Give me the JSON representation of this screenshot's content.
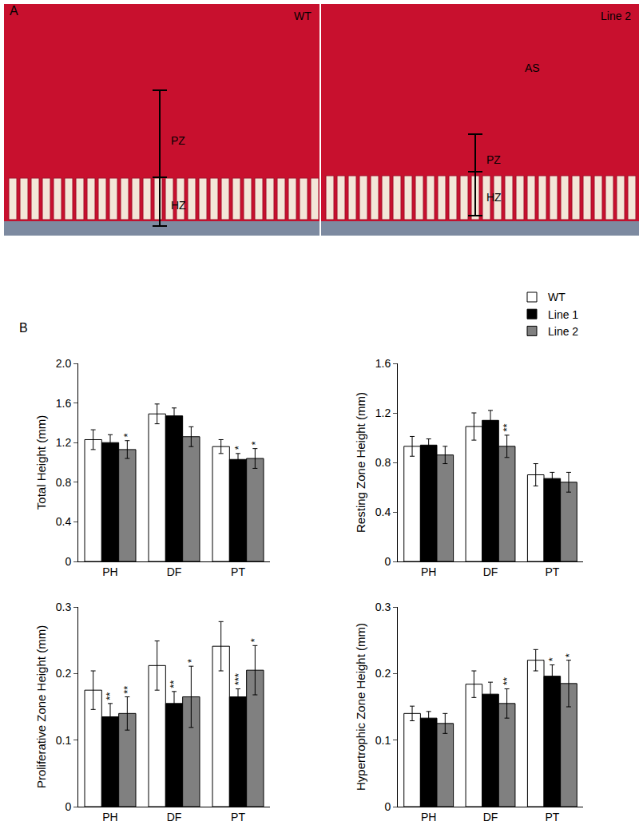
{
  "figure": {
    "panel_labels": [
      "A",
      "B"
    ],
    "images": [
      {
        "label": "WT",
        "zones": [
          "PZ",
          "HZ"
        ],
        "annotations": []
      },
      {
        "label": "Line 2",
        "zones": [
          "PZ",
          "HZ"
        ],
        "annotations": [
          "AS"
        ]
      }
    ]
  },
  "chart_data": [
    {
      "type": "bar",
      "y_label": "Total Height (mm)",
      "categories": [
        "PH",
        "DF",
        "PT"
      ],
      "ylim": [
        0,
        2.0
      ],
      "yticks": [
        0,
        0.4,
        0.8,
        1.2,
        1.6,
        {
          "value": 2.0,
          "label": "2.0"
        }
      ],
      "grid": false,
      "series": [
        {
          "name": "WT",
          "color": "#ffffff",
          "values": [
            1.23,
            1.49,
            1.16
          ],
          "error": [
            0.1,
            0.1,
            0.07
          ],
          "significance": [
            null,
            null,
            null
          ]
        },
        {
          "name": "Line 1",
          "color": "#000000",
          "values": [
            1.2,
            1.47,
            1.03
          ],
          "error": [
            0.08,
            0.08,
            0.06
          ],
          "significance": [
            null,
            null,
            "*"
          ]
        },
        {
          "name": "Line 2",
          "color": "#808080",
          "values": [
            1.13,
            1.26,
            1.04
          ],
          "error": [
            0.09,
            0.1,
            0.1
          ],
          "significance": [
            "*",
            null,
            "*"
          ]
        }
      ]
    },
    {
      "type": "bar",
      "y_label": "Resting Zone Height (mm)",
      "categories": [
        "PH",
        "DF",
        "PT"
      ],
      "ylim": [
        0,
        1.6
      ],
      "yticks": [
        0,
        0.4,
        0.8,
        1.2,
        1.6
      ],
      "grid": false,
      "legend": "upper right",
      "series": [
        {
          "name": "WT",
          "color": "#ffffff",
          "values": [
            0.93,
            1.09,
            0.7
          ],
          "error": [
            0.08,
            0.11,
            0.09
          ],
          "significance": [
            null,
            null,
            null
          ]
        },
        {
          "name": "Line 1",
          "color": "#000000",
          "values": [
            0.94,
            1.14,
            0.67
          ],
          "error": [
            0.05,
            0.08,
            0.05
          ],
          "significance": [
            null,
            null,
            null
          ]
        },
        {
          "name": "Line 2",
          "color": "#808080",
          "values": [
            0.86,
            0.93,
            0.64
          ],
          "error": [
            0.07,
            0.09,
            0.08
          ],
          "significance": [
            null,
            "**",
            null
          ]
        }
      ]
    },
    {
      "type": "bar",
      "y_label": "Proliferative Zone Height (mm)",
      "categories": [
        "PH",
        "DF",
        "PT"
      ],
      "ylim": [
        0,
        0.3
      ],
      "yticks": [
        0,
        0.1,
        0.2,
        0.3
      ],
      "grid": false,
      "series": [
        {
          "name": "WT",
          "color": "#ffffff",
          "values": [
            0.175,
            0.212,
            0.241
          ],
          "error": [
            0.029,
            0.037,
            0.037
          ],
          "significance": [
            null,
            null,
            null
          ]
        },
        {
          "name": "Line 1",
          "color": "#000000",
          "values": [
            0.135,
            0.155,
            0.165
          ],
          "error": [
            0.02,
            0.018,
            0.012
          ],
          "significance": [
            "**",
            "**",
            "***"
          ]
        },
        {
          "name": "Line 2",
          "color": "#808080",
          "values": [
            0.14,
            0.165,
            0.205
          ],
          "error": [
            0.025,
            0.046,
            0.037
          ],
          "significance": [
            "**",
            "*",
            "*"
          ]
        }
      ]
    },
    {
      "type": "bar",
      "y_label": "Hypertrophic Zone Height (mm)",
      "categories": [
        "PH",
        "DF",
        "PT"
      ],
      "ylim": [
        0,
        0.3
      ],
      "yticks": [
        0,
        0.1,
        0.2,
        0.3
      ],
      "grid": false,
      "series": [
        {
          "name": "WT",
          "color": "#ffffff",
          "values": [
            0.14,
            0.184,
            0.22
          ],
          "error": [
            0.011,
            0.02,
            0.016
          ],
          "significance": [
            null,
            null,
            null
          ]
        },
        {
          "name": "Line 1",
          "color": "#000000",
          "values": [
            0.133,
            0.169,
            0.196
          ],
          "error": [
            0.01,
            0.018,
            0.017
          ],
          "significance": [
            null,
            null,
            "*"
          ]
        },
        {
          "name": "Line 2",
          "color": "#808080",
          "values": [
            0.125,
            0.155,
            0.185
          ],
          "error": [
            0.015,
            0.022,
            0.035
          ],
          "significance": [
            null,
            "**",
            "*"
          ]
        }
      ]
    }
  ]
}
